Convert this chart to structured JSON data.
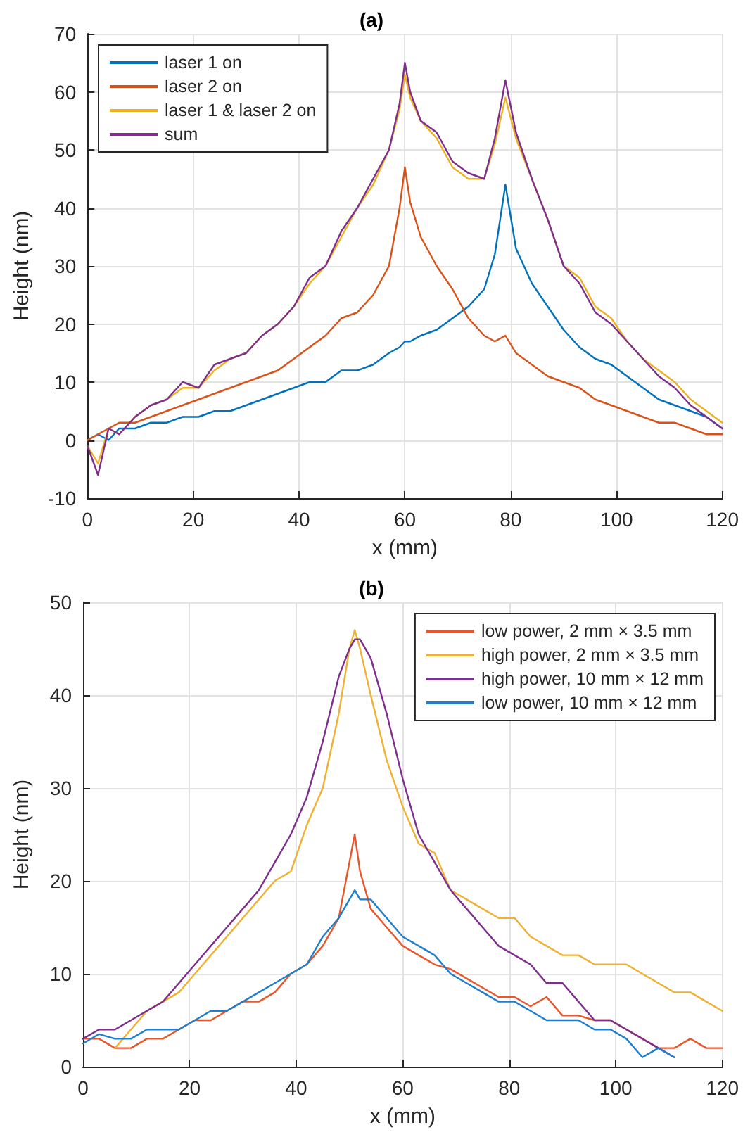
{
  "chart_data": [
    {
      "type": "line",
      "title": "(a)",
      "xlabel": "x (mm)",
      "ylabel": "Height (nm)",
      "xlim": [
        0,
        120
      ],
      "xticks": [
        0,
        20,
        40,
        60,
        80,
        100,
        120
      ],
      "ylim": [
        -10,
        70
      ],
      "yticks": [
        -10,
        0,
        10,
        20,
        30,
        40,
        50,
        60,
        70
      ],
      "grid": true,
      "legend": "top left",
      "marker": "none",
      "line_style": "solid",
      "x": [
        0,
        2,
        4,
        6,
        9,
        12,
        15,
        18,
        21,
        24,
        27,
        30,
        33,
        36,
        39,
        42,
        45,
        48,
        51,
        54,
        57,
        59,
        60,
        61,
        63,
        66,
        69,
        72,
        75,
        77,
        79,
        81,
        84,
        87,
        90,
        93,
        96,
        99,
        102,
        105,
        108,
        111,
        114,
        117,
        120
      ],
      "series": [
        {
          "name": "laser 1 on",
          "color": "#0072bd",
          "values": [
            0,
            1,
            0,
            2,
            2,
            3,
            3,
            4,
            4,
            5,
            5,
            6,
            7,
            8,
            9,
            10,
            10,
            12,
            12,
            13,
            15,
            16,
            17,
            17,
            18,
            19,
            21,
            23,
            26,
            32,
            44,
            33,
            27,
            23,
            19,
            16,
            14,
            13,
            11,
            9,
            7,
            6,
            5,
            4,
            2
          ]
        },
        {
          "name": "laser 2 on",
          "color": "#d95319",
          "values": [
            0,
            1,
            2,
            3,
            3,
            4,
            5,
            6,
            7,
            8,
            9,
            10,
            11,
            12,
            14,
            16,
            18,
            21,
            22,
            25,
            30,
            40,
            47,
            41,
            35,
            30,
            26,
            21,
            18,
            17,
            18,
            15,
            13,
            11,
            10,
            9,
            7,
            6,
            5,
            4,
            3,
            3,
            2,
            1,
            1
          ]
        },
        {
          "name": "laser 1 & laser 2 on",
          "color": "#edb120",
          "values": [
            -1,
            -4,
            2,
            1,
            4,
            6,
            7,
            9,
            9,
            12,
            14,
            15,
            18,
            20,
            23,
            27,
            30,
            35,
            40,
            44,
            50,
            57,
            63,
            59,
            55,
            52,
            47,
            45,
            45,
            51,
            59,
            52,
            45,
            38,
            30,
            28,
            23,
            21,
            17,
            14,
            12,
            10,
            7,
            5,
            3
          ]
        },
        {
          "name": "sum",
          "color": "#7e2f8e",
          "values": [
            -1,
            -6,
            2,
            1,
            4,
            6,
            7,
            10,
            9,
            13,
            14,
            15,
            18,
            20,
            23,
            28,
            30,
            36,
            40,
            45,
            50,
            58,
            65,
            60,
            55,
            53,
            48,
            46,
            45,
            52,
            62,
            53,
            45,
            38,
            30,
            27,
            22,
            20,
            17,
            14,
            11,
            9,
            6,
            4,
            2
          ]
        }
      ]
    },
    {
      "type": "line",
      "title": "(b)",
      "xlabel": "x (mm)",
      "ylabel": "Height (nm)",
      "xlim": [
        0,
        120
      ],
      "xticks": [
        0,
        20,
        40,
        60,
        80,
        100,
        120
      ],
      "ylim": [
        0,
        50
      ],
      "yticks": [
        0,
        10,
        20,
        30,
        40,
        50
      ],
      "grid": true,
      "legend": "top right",
      "marker": "none",
      "line_style": "solid",
      "x": [
        0,
        3,
        6,
        9,
        12,
        15,
        18,
        21,
        24,
        27,
        30,
        33,
        36,
        39,
        42,
        45,
        48,
        50,
        51,
        52,
        54,
        57,
        60,
        63,
        66,
        69,
        72,
        75,
        78,
        81,
        84,
        87,
        90,
        93,
        96,
        99,
        102,
        105,
        108,
        111,
        114,
        117,
        120
      ],
      "series": [
        {
          "name": "low power, 2 mm × 3.5 mm",
          "color": "#e8562a",
          "values": [
            3,
            3,
            2,
            2,
            3,
            3,
            4,
            5,
            5,
            6,
            7,
            7,
            8,
            10,
            11,
            13,
            16,
            22,
            25,
            21,
            17,
            15,
            13,
            12,
            11,
            10.5,
            9.5,
            8.5,
            7.5,
            7.5,
            6.5,
            7.5,
            5.5,
            5.5,
            5,
            5,
            4,
            3,
            2,
            2,
            3,
            2,
            2
          ]
        },
        {
          "name": "high power, 2 mm × 3.5 mm",
          "color": "#f0b132",
          "values": [
            null,
            null,
            2,
            4,
            6,
            7,
            8,
            10,
            12,
            14,
            16,
            18,
            20,
            21,
            26,
            30,
            38,
            45,
            47,
            45,
            40,
            33,
            28,
            24,
            23,
            19,
            18,
            17,
            16,
            16,
            14,
            13,
            12,
            12,
            11,
            11,
            11,
            10,
            9,
            8,
            8,
            7,
            6
          ]
        },
        {
          "name": "high power, 10 mm × 12 mm",
          "color": "#7e2f8e",
          "values": [
            3,
            4,
            4,
            5,
            6,
            7,
            9,
            11,
            13,
            15,
            17,
            19,
            22,
            25,
            29,
            35,
            42,
            45,
            46,
            46,
            44,
            38,
            31,
            25,
            22,
            19,
            17,
            15,
            13,
            12,
            11,
            9,
            9,
            7,
            5,
            5,
            4,
            3,
            2,
            1,
            null,
            null,
            null
          ]
        },
        {
          "name": "low power, 10 mm × 12 mm",
          "color": "#1f7fcf",
          "values": [
            2.5,
            3.5,
            3,
            3,
            4,
            4,
            4,
            5,
            6,
            6,
            7,
            8,
            9,
            10,
            11,
            14,
            16,
            18,
            19,
            18,
            18,
            16,
            14,
            13,
            12,
            10,
            9,
            8,
            7,
            7,
            6,
            5,
            5,
            5,
            4,
            4,
            3,
            1,
            2,
            1,
            null,
            null,
            null
          ]
        }
      ]
    }
  ]
}
